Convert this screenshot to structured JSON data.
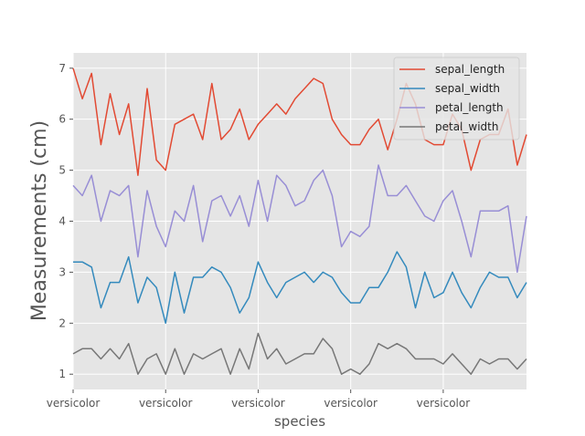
{
  "chart_data": {
    "type": "line",
    "title": "",
    "xlabel": "species",
    "ylabel": "Measurements (cm)",
    "ylim": [
      0.7,
      7.3
    ],
    "yticks": [
      1,
      2,
      3,
      4,
      5,
      6,
      7
    ],
    "xtick_labels": [
      "versicolor",
      "versicolor",
      "versicolor",
      "versicolor",
      "versicolor"
    ],
    "xtick_positions": [
      50,
      60,
      70,
      80,
      90
    ],
    "xlim": [
      50,
      99
    ],
    "x": [
      50,
      51,
      52,
      53,
      54,
      55,
      56,
      57,
      58,
      59,
      60,
      61,
      62,
      63,
      64,
      65,
      66,
      67,
      68,
      69,
      70,
      71,
      72,
      73,
      74,
      75,
      76,
      77,
      78,
      79,
      80,
      81,
      82,
      83,
      84,
      85,
      86,
      87,
      88,
      89,
      90,
      91,
      92,
      93,
      94,
      95,
      96,
      97,
      98,
      99
    ],
    "grid": true,
    "legend_position": "top-right",
    "series": [
      {
        "name": "sepal_length",
        "color": "#E24A33",
        "values": [
          7.0,
          6.4,
          6.9,
          5.5,
          6.5,
          5.7,
          6.3,
          4.9,
          6.6,
          5.2,
          5.0,
          5.9,
          6.0,
          6.1,
          5.6,
          6.7,
          5.6,
          5.8,
          6.2,
          5.6,
          5.9,
          6.1,
          6.3,
          6.1,
          6.4,
          6.6,
          6.8,
          6.7,
          6.0,
          5.7,
          5.5,
          5.5,
          5.8,
          6.0,
          5.4,
          6.0,
          6.7,
          6.3,
          5.6,
          5.5,
          5.5,
          6.1,
          5.8,
          5.0,
          5.6,
          5.7,
          5.7,
          6.2,
          5.1,
          5.7
        ]
      },
      {
        "name": "sepal_width",
        "color": "#348ABD",
        "values": [
          3.2,
          3.2,
          3.1,
          2.3,
          2.8,
          2.8,
          3.3,
          2.4,
          2.9,
          2.7,
          2.0,
          3.0,
          2.2,
          2.9,
          2.9,
          3.1,
          3.0,
          2.7,
          2.2,
          2.5,
          3.2,
          2.8,
          2.5,
          2.8,
          2.9,
          3.0,
          2.8,
          3.0,
          2.9,
          2.6,
          2.4,
          2.4,
          2.7,
          2.7,
          3.0,
          3.4,
          3.1,
          2.3,
          3.0,
          2.5,
          2.6,
          3.0,
          2.6,
          2.3,
          2.7,
          3.0,
          2.9,
          2.9,
          2.5,
          2.8
        ]
      },
      {
        "name": "petal_length",
        "color": "#988ED5",
        "values": [
          4.7,
          4.5,
          4.9,
          4.0,
          4.6,
          4.5,
          4.7,
          3.3,
          4.6,
          3.9,
          3.5,
          4.2,
          4.0,
          4.7,
          3.6,
          4.4,
          4.5,
          4.1,
          4.5,
          3.9,
          4.8,
          4.0,
          4.9,
          4.7,
          4.3,
          4.4,
          4.8,
          5.0,
          4.5,
          3.5,
          3.8,
          3.7,
          3.9,
          5.1,
          4.5,
          4.5,
          4.7,
          4.4,
          4.1,
          4.0,
          4.4,
          4.6,
          4.0,
          3.3,
          4.2,
          4.2,
          4.2,
          4.3,
          3.0,
          4.1
        ]
      },
      {
        "name": "petal_width",
        "color": "#777777",
        "values": [
          1.4,
          1.5,
          1.5,
          1.3,
          1.5,
          1.3,
          1.6,
          1.0,
          1.3,
          1.4,
          1.0,
          1.5,
          1.0,
          1.4,
          1.3,
          1.4,
          1.5,
          1.0,
          1.5,
          1.1,
          1.8,
          1.3,
          1.5,
          1.2,
          1.3,
          1.4,
          1.4,
          1.7,
          1.5,
          1.0,
          1.1,
          1.0,
          1.2,
          1.6,
          1.5,
          1.6,
          1.5,
          1.3,
          1.3,
          1.3,
          1.2,
          1.4,
          1.2,
          1.0,
          1.3,
          1.2,
          1.3,
          1.3,
          1.1,
          1.3
        ]
      }
    ]
  }
}
